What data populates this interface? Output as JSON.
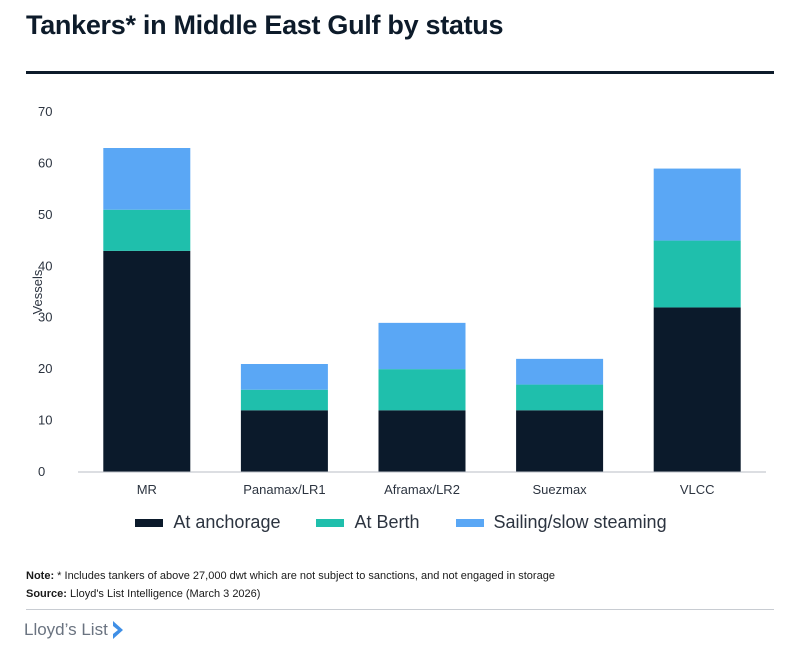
{
  "title": "Tankers* in Middle East Gulf by status",
  "note": {
    "label": "Note:",
    "text": "* Includes tankers of above 27,000 dwt which are not subject to sanctions, and not engaged in storage"
  },
  "source": {
    "label": "Source:",
    "text": "Lloyd's List Intelligence (March 3 2026)"
  },
  "brand": "Lloyd’s List",
  "colors": {
    "anchorage": "#0b1a2b",
    "berth": "#1fbfac",
    "sailing": "#5aa7f5"
  },
  "chart_data": {
    "type": "bar",
    "stacked": true,
    "categories": [
      "MR",
      "Panamax/LR1",
      "Aframax/LR2",
      "Suezmax",
      "VLCC"
    ],
    "series": [
      {
        "name": "At anchorage",
        "values": [
          43,
          12,
          12,
          12,
          32
        ]
      },
      {
        "name": "At Berth",
        "values": [
          8,
          4,
          8,
          5,
          13
        ]
      },
      {
        "name": "Sailing/slow steaming",
        "values": [
          12,
          5,
          9,
          5,
          14
        ]
      }
    ],
    "ylabel": "Vessels",
    "yticks": [
      0,
      10,
      20,
      30,
      40,
      50,
      60,
      70
    ],
    "ylim": [
      0,
      70
    ],
    "grid": false,
    "legend": "bottom"
  }
}
